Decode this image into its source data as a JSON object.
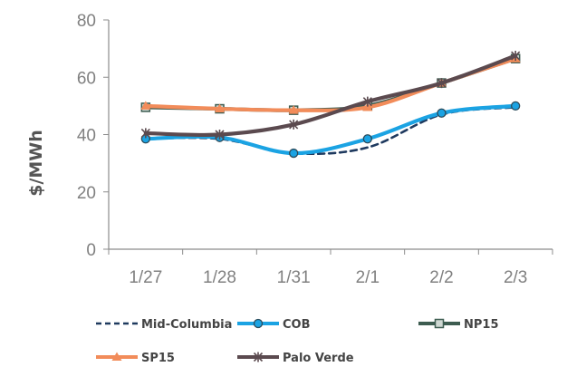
{
  "chart_data": {
    "type": "line",
    "title": "",
    "xlabel": "",
    "ylabel": "$/MWh",
    "categories": [
      "1/27",
      "1/28",
      "1/31",
      "2/1",
      "2/2",
      "2/3"
    ],
    "ylim": [
      0,
      80
    ],
    "yticks": [
      0,
      20,
      40,
      60,
      80
    ],
    "grid": false,
    "legend_position": "bottom",
    "series": [
      {
        "name": "Mid-Columbia",
        "values": [
          38.5,
          38.5,
          33.5,
          35.5,
          47,
          49.5
        ],
        "color": "#1f3a5f",
        "style": "dashed",
        "marker": "none"
      },
      {
        "name": "COB",
        "values": [
          38.5,
          39,
          33.5,
          38.5,
          47.5,
          50
        ],
        "color": "#1ba3e3",
        "style": "solid",
        "marker": "circle"
      },
      {
        "name": "NP15",
        "values": [
          49.5,
          49,
          48.5,
          50,
          58,
          66.5
        ],
        "color": "#3d5c50",
        "style": "solid",
        "marker": "square"
      },
      {
        "name": "SP15",
        "values": [
          50,
          49,
          48.5,
          49.5,
          58,
          66.5
        ],
        "color": "#f28c5a",
        "style": "solid",
        "marker": "triangle"
      },
      {
        "name": "Palo Verde",
        "values": [
          40.5,
          40,
          43.5,
          51.5,
          58,
          67.5
        ],
        "color": "#5b4a4f",
        "style": "solid",
        "marker": "x"
      }
    ]
  }
}
